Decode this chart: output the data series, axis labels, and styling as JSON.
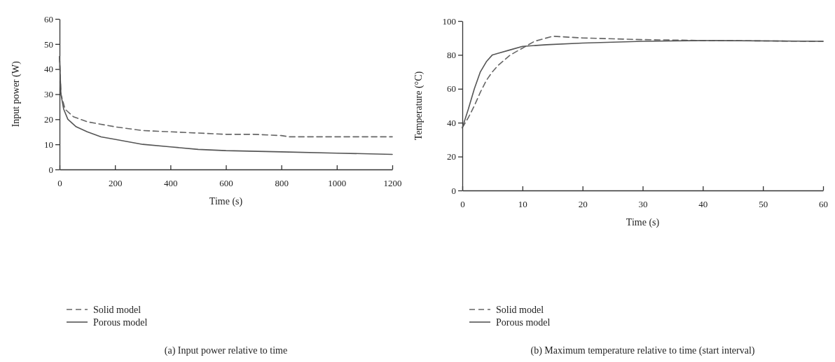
{
  "chart_data": [
    {
      "type": "line",
      "title": "(a) Input power relative to time",
      "xlabel": "Time (s)",
      "ylabel": "Input power (W)",
      "xlim": [
        0,
        1200
      ],
      "xticks": [
        0,
        200,
        400,
        600,
        800,
        1000,
        1200
      ],
      "ylim": [
        0,
        60
      ],
      "yticks": [
        0,
        10,
        20,
        30,
        40,
        50,
        60
      ],
      "legend": "bottom left",
      "grid": false,
      "series": [
        {
          "name": "Solid model",
          "color": "#666666",
          "line_style": "dashed",
          "x": [
            0,
            5,
            20,
            50,
            100,
            200,
            300,
            400,
            500,
            600,
            700,
            800,
            830,
            1000,
            1200
          ],
          "values": [
            45,
            30,
            24,
            21,
            19,
            17,
            15.5,
            15,
            14.5,
            14,
            14,
            13.5,
            13,
            13,
            13
          ]
        },
        {
          "name": "Porous model",
          "color": "#555555",
          "line_style": "solid",
          "x": [
            0,
            5,
            15,
            30,
            60,
            100,
            150,
            200,
            300,
            400,
            500,
            600,
            800,
            1000,
            1200
          ],
          "values": [
            45,
            30,
            24,
            20,
            17,
            15,
            13,
            12,
            10,
            9,
            8,
            7.5,
            7,
            6.5,
            6
          ]
        }
      ]
    },
    {
      "type": "line",
      "title": "(b) Maximum temperature relative to time (start interval)",
      "xlabel": "Time (s)",
      "ylabel": "Temperature (°C)",
      "xlim": [
        0,
        60
      ],
      "xticks": [
        0,
        10,
        20,
        30,
        40,
        50,
        60
      ],
      "ylim": [
        0,
        100
      ],
      "yticks": [
        0,
        20,
        40,
        60,
        80,
        100
      ],
      "legend": "bottom left",
      "grid": false,
      "series": [
        {
          "name": "Solid model",
          "color": "#666666",
          "line_style": "dashed",
          "x": [
            0,
            1,
            2,
            3,
            4,
            5,
            6,
            8,
            10,
            12,
            15,
            20,
            30,
            40,
            60
          ],
          "values": [
            37,
            43,
            50,
            58,
            65,
            70,
            74,
            80,
            84,
            88,
            91,
            90,
            89,
            88.5,
            88
          ]
        },
        {
          "name": "Porous model",
          "color": "#555555",
          "line_style": "solid",
          "x": [
            0,
            1,
            2,
            3,
            4,
            5,
            6,
            8,
            10,
            14,
            20,
            30,
            40,
            60
          ],
          "values": [
            37,
            48,
            60,
            70,
            76,
            80,
            81,
            83,
            85,
            86,
            87,
            88,
            88.5,
            88
          ]
        }
      ]
    }
  ]
}
